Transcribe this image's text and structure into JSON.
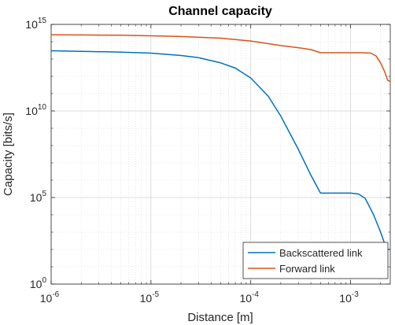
{
  "chart_data": {
    "type": "line",
    "title": "Channel capacity",
    "xlabel": "Distance [m]",
    "ylabel": "Capacity [bits/s]",
    "x_scale": "log",
    "y_scale": "log",
    "xlim": [
      1e-06,
      0.0025
    ],
    "ylim": [
      1,
      1000000000000000.0
    ],
    "grid": "major and minor",
    "legend_position": "bottom-right",
    "x_ticks": [
      {
        "value": 1e-06,
        "base": "10",
        "exp": "-6"
      },
      {
        "value": 1e-05,
        "base": "10",
        "exp": "-5"
      },
      {
        "value": 0.0001,
        "base": "10",
        "exp": "-4"
      },
      {
        "value": 0.001,
        "base": "10",
        "exp": "-3"
      }
    ],
    "y_ticks": [
      {
        "value": 1,
        "base": "10",
        "exp": "0"
      },
      {
        "value": 100000.0,
        "base": "10",
        "exp": "5"
      },
      {
        "value": 10000000000.0,
        "base": "10",
        "exp": "10"
      },
      {
        "value": 1000000000000000.0,
        "base": "10",
        "exp": "15"
      }
    ],
    "series": [
      {
        "name": "Backscattered link",
        "color": "#0072BD",
        "x": [
          1e-06,
          2e-06,
          5e-06,
          1e-05,
          2e-05,
          3e-05,
          5e-05,
          7e-05,
          0.0001,
          0.00015,
          0.0002,
          0.0003,
          0.0004,
          0.0005,
          0.0006,
          0.0008,
          0.001,
          0.0012,
          0.0014,
          0.0017,
          0.002,
          0.0023,
          0.0025
        ],
        "y": [
          30000000000000.0,
          28000000000000.0,
          25000000000000.0,
          22000000000000.0,
          16000000000000.0,
          12000000000000.0,
          6000000000000.0,
          3000000000000.0,
          800000000000.0,
          70000000000.0,
          5000000000.0,
          60000000.0,
          2000000.0,
          180000.0,
          180000.0,
          180000.0,
          180000.0,
          160000.0,
          90000.0,
          10000.0,
          1000.0,
          100.0,
          100.0
        ]
      },
      {
        "name": "Forward link",
        "color": "#D95319",
        "x": [
          1e-06,
          2e-06,
          5e-06,
          1e-05,
          2e-05,
          5e-05,
          0.0001,
          0.0002,
          0.0003,
          0.0004,
          0.0005,
          0.0006,
          0.0008,
          0.001,
          0.0013,
          0.0016,
          0.0018,
          0.002,
          0.0022,
          0.00235,
          0.0025
        ],
        "y": [
          250000000000000.0,
          245000000000000.0,
          235000000000000.0,
          220000000000000.0,
          200000000000000.0,
          160000000000000.0,
          110000000000000.0,
          60000000000000.0,
          45000000000000.0,
          35000000000000.0,
          23000000000000.0,
          23000000000000.0,
          23000000000000.0,
          23000000000000.0,
          23000000000000.0,
          22000000000000.0,
          15000000000000.0,
          6000000000000.0,
          1800000000000.0,
          600000000000.0,
          500000000000.0
        ]
      }
    ]
  }
}
